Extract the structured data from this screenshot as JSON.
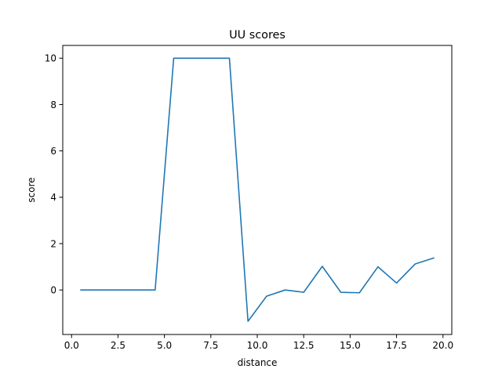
{
  "chart_data": {
    "type": "line",
    "title": "UU scores",
    "xlabel": "distance",
    "ylabel": "score",
    "xlim": [
      -0.475,
      20.475
    ],
    "ylim": [
      -1.92,
      10.55
    ],
    "xticks": [
      0.0,
      2.5,
      5.0,
      7.5,
      10.0,
      12.5,
      15.0,
      17.5,
      20.0
    ],
    "xtick_labels": [
      "0.0",
      "2.5",
      "5.0",
      "7.5",
      "10.0",
      "12.5",
      "15.0",
      "17.5",
      "20.0"
    ],
    "yticks": [
      0,
      2,
      4,
      6,
      8,
      10
    ],
    "ytick_labels": [
      "0",
      "2",
      "4",
      "6",
      "8",
      "10"
    ],
    "grid": false,
    "series": [
      {
        "color": "#1f77b4",
        "x": [
          0.5,
          1.5,
          2.5,
          3.5,
          4.5,
          5.5,
          6.5,
          7.5,
          8.5,
          9.5,
          10.5,
          11.5,
          12.5,
          13.5,
          14.5,
          15.5,
          16.5,
          17.5,
          18.5,
          19.5
        ],
        "y": [
          0,
          0,
          0,
          0,
          0,
          10,
          10,
          10,
          10,
          -1.35,
          -0.27,
          0.0,
          -0.1,
          1.02,
          -0.1,
          -0.12,
          1.0,
          0.3,
          1.12,
          1.38
        ]
      }
    ]
  }
}
